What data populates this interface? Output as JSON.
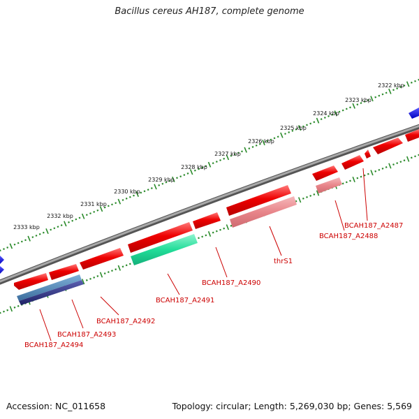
{
  "title": "Bacillus cereus AH187, complete genome",
  "footer": {
    "accession": "Accession: NC_011658",
    "stats": "Topology: circular; Length: 5,269,030 bp; Genes: 5,569"
  },
  "scale": {
    "unit": "kbp",
    "ticks": [
      {
        "label": "2322 kbp",
        "kbp": 2322
      },
      {
        "label": "2323 kbp",
        "kbp": 2323
      },
      {
        "label": "2324 kbp",
        "kbp": 2324
      },
      {
        "label": "2325 kbp",
        "kbp": 2325
      },
      {
        "label": "2326 kbp",
        "kbp": 2326
      },
      {
        "label": "2327 kbp",
        "kbp": 2327
      },
      {
        "label": "2328 kbp",
        "kbp": 2328
      },
      {
        "label": "2329 kbp",
        "kbp": 2329
      },
      {
        "label": "2330 kbp",
        "kbp": 2330
      },
      {
        "label": "2331 kbp",
        "kbp": 2331
      },
      {
        "label": "2332 kbp",
        "kbp": 2332
      },
      {
        "label": "2333 kbp",
        "kbp": 2333
      }
    ]
  },
  "gene_labels": [
    {
      "text": "BCAH187_A2487"
    },
    {
      "text": "BCAH187_A2488"
    },
    {
      "text": "thrS1"
    },
    {
      "text": "BCAH187_A2490"
    },
    {
      "text": "BCAH187_A2491"
    },
    {
      "text": "BCAH187_A2492"
    },
    {
      "text": "BCAH187_A2493"
    },
    {
      "text": "BCAH187_A2494"
    }
  ],
  "colors": {
    "backbone": "#7a7a7a",
    "gene_red": "#ee0000",
    "gene_pink": "#e8858a",
    "gene_green": "#22dd99",
    "gene_steel": "#4a7fb0",
    "gene_navy": "#2a2d7a",
    "gene_blue": "#1010e0",
    "tick_green": "#2a8a2a",
    "label_red": "#cc0000"
  }
}
